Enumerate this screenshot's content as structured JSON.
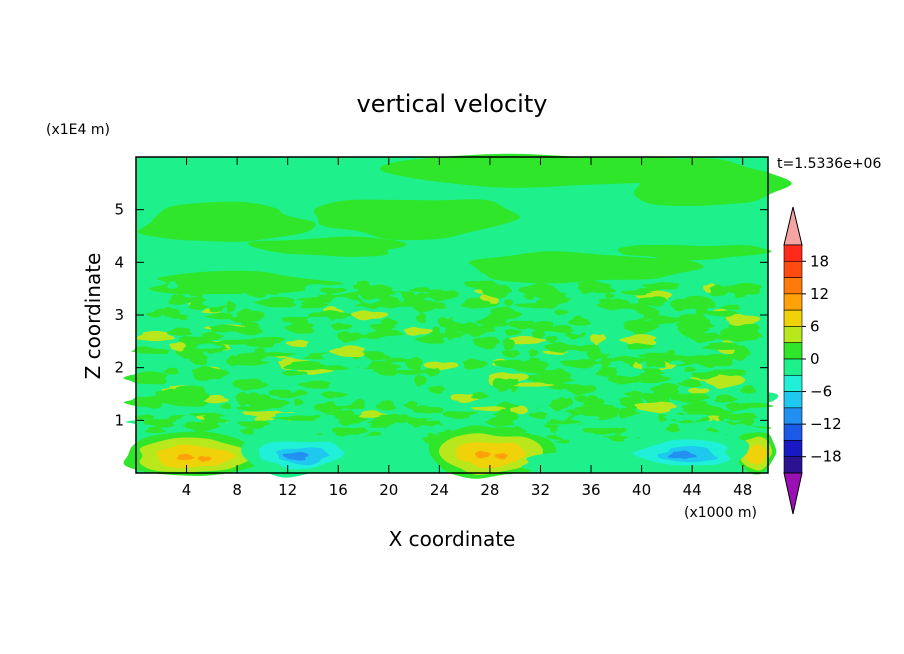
{
  "chart_data": {
    "type": "heatmap",
    "title": "vertical velocity",
    "xlabel": "X coordinate",
    "ylabel": "Z coordinate",
    "x_scale_note": "(x1000 m)",
    "y_scale_note": "(x1E4 m)",
    "time_label": "t=1.5336e+06",
    "xlim": [
      0,
      50
    ],
    "ylim": [
      0,
      6
    ],
    "x_ticks": [
      4,
      8,
      12,
      16,
      20,
      24,
      28,
      32,
      36,
      40,
      44,
      48
    ],
    "y_ticks": [
      1,
      2,
      3,
      4,
      5
    ],
    "colorbar": {
      "ticks": [
        18,
        12,
        6,
        0,
        -6,
        -12,
        -18
      ],
      "levels_top_to_bottom": [
        {
          "min": 18,
          "max": 21,
          "color": "#ff2a1a"
        },
        {
          "min": 15,
          "max": 18,
          "color": "#ff4a12"
        },
        {
          "min": 12,
          "max": 15,
          "color": "#ff7a0a"
        },
        {
          "min": 9,
          "max": 12,
          "color": "#ffa20a"
        },
        {
          "min": 6,
          "max": 9,
          "color": "#f0d20a"
        },
        {
          "min": 3,
          "max": 6,
          "color": "#b8e81c"
        },
        {
          "min": 0,
          "max": 3,
          "color": "#2fe62a"
        },
        {
          "min": -3,
          "max": 0,
          "color": "#1ef08c"
        },
        {
          "min": -6,
          "max": -3,
          "color": "#20f0d8"
        },
        {
          "min": -9,
          "max": -6,
          "color": "#1ec8ee"
        },
        {
          "min": -12,
          "max": -9,
          "color": "#2290f0"
        },
        {
          "min": -15,
          "max": -12,
          "color": "#1a5ae6"
        },
        {
          "min": -18,
          "max": -15,
          "color": "#1818c4"
        },
        {
          "min": -21,
          "max": -18,
          "color": "#2a1290"
        }
      ],
      "over_color": "#f5a3a3",
      "under_color": "#9a10b4"
    },
    "background_level_color": "#1ef08c",
    "features": [
      {
        "kind": "updraft",
        "x": 4.5,
        "z": 0.35,
        "value": 7
      },
      {
        "kind": "updraft",
        "x": 28,
        "z": 0.4,
        "value": 8
      },
      {
        "kind": "updraft",
        "x": 49,
        "z": 0.4,
        "value": 4
      },
      {
        "kind": "downdraft",
        "x": 13,
        "z": 0.35,
        "value": -10
      },
      {
        "kind": "downdraft",
        "x": 43.5,
        "z": 0.4,
        "value": -9
      },
      {
        "kind": "weak_positive_band",
        "x": 25,
        "z": 2.2,
        "value": 1
      },
      {
        "kind": "weak_positive_band",
        "x": 25,
        "z": 4.6,
        "value": 1
      }
    ]
  }
}
